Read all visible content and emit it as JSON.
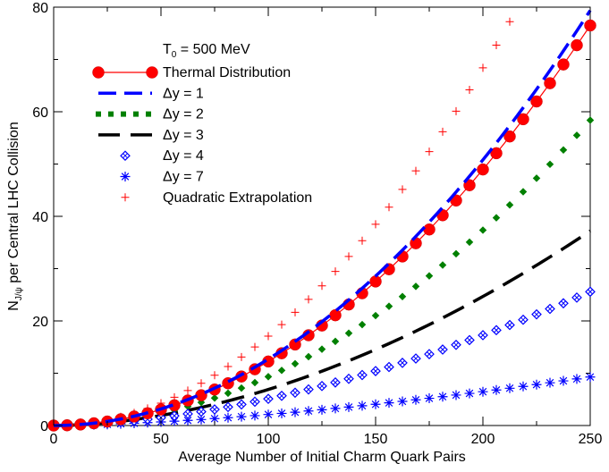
{
  "chart_data": {
    "type": "line",
    "title": "",
    "xlabel": "Average Number of Initial Charm Quark Pairs",
    "ylabel_main": "N",
    "ylabel_sub": "J/ψ",
    "ylabel_rest": " per Central LHC Collision",
    "xlim": [
      0,
      250
    ],
    "ylim": [
      0,
      80
    ],
    "xticks": [
      0,
      50,
      100,
      150,
      200,
      250
    ],
    "yticks": [
      0,
      20,
      40,
      60,
      80
    ],
    "xtick_labels": [
      "0",
      "50",
      "100",
      "150",
      "200",
      "250"
    ],
    "ytick_labels": [
      "0",
      "20",
      "40",
      "60",
      "80"
    ],
    "legend_header_main": "T",
    "legend_header_sub": "0",
    "legend_header_rest": " = 500 MeV",
    "legend_position": "top-left",
    "x_step": 6.25,
    "series": [
      {
        "name": "Thermal Distribution",
        "style": "circle-line",
        "color": "#ff0000",
        "coef": 0.001224,
        "power": 2.0
      },
      {
        "name": "Δy = 1",
        "style": "dashed",
        "color": "#0000ff",
        "coef": 0.00127,
        "power": 2.0
      },
      {
        "name": "Δy = 2",
        "style": "dotted-square",
        "color": "#008000",
        "coef": 0.000934,
        "power": 2.0
      },
      {
        "name": "Δy = 3",
        "style": "long-dashed",
        "color": "#000000",
        "coef": 0.00144,
        "power": 1.84
      },
      {
        "name": "Δy = 4",
        "style": "diamond",
        "color": "#0000ff",
        "coef": 0.00154,
        "power": 1.76
      },
      {
        "name": "Δy = 7",
        "style": "star",
        "color": "#0000ff",
        "coef": 0.00121,
        "power": 1.62
      },
      {
        "name": "Quadratic Extrapolation",
        "style": "plus",
        "color": "#ff0000",
        "coef": 0.00171,
        "power": 2.0
      }
    ],
    "quadratic_x_max": 215
  }
}
